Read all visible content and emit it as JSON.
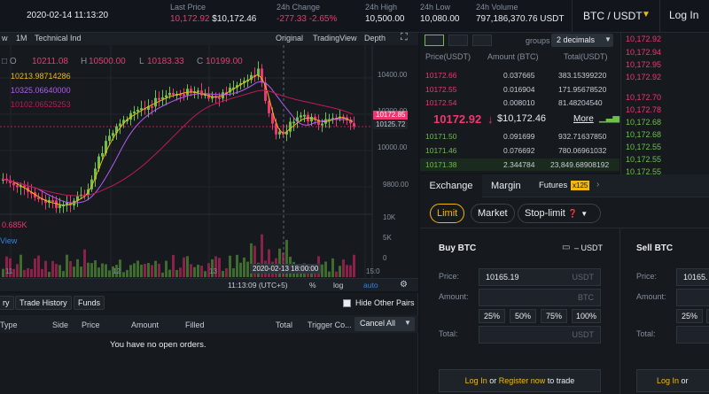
{
  "header": {
    "datetime": "2020-02-14 11:13:20",
    "last_price_label": "Last Price",
    "last_price": "10,172.92",
    "last_price_usd": "$10,172.46",
    "change_label": "24h Change",
    "change_value": "-277.33",
    "change_pct": "-2.65%",
    "high_label": "24h High",
    "high_value": "10,500.00",
    "low_label": "24h Low",
    "low_value": "10,080.00",
    "volume_label": "24h Volume",
    "volume_value": "797,186,370.76 USDT",
    "pair": "BTC / USDT",
    "login": "Log In"
  },
  "chart_toolbar": {
    "intervals": [
      "w",
      "1M"
    ],
    "tech": "Technical Ind",
    "original": "Original",
    "tradingview": "TradingView",
    "depth": "Depth"
  },
  "chart": {
    "ohlc_o": "O",
    "ohlc_o_val": "10211.08",
    "ohlc_h": "H",
    "ohlc_h_val": "10500.00",
    "ohlc_l": "L",
    "ohlc_l_val": "10183.33",
    "ohlc_c": "C",
    "ohlc_c_val": "10199.00",
    "ma1": "10213.98714286",
    "ma2": "10325.06640000",
    "ma3": "10102.06525253",
    "vol": "0.685K",
    "view": "View",
    "price_ticks": [
      "10400.00",
      "10200.00",
      "10000.00",
      "9800.00"
    ],
    "tag_last": "10172.85",
    "tag_ma": "10125.72",
    "vol_ticks": [
      "10K",
      "5K",
      "0"
    ],
    "x_ticks": [
      "11",
      "12",
      "13",
      "15:0"
    ],
    "x_tooltip": "2020-02-13 18:00:00",
    "footer_time": "11:13:09 (UTC+5)",
    "footer_pct": "%",
    "footer_log": "log",
    "footer_auto": "auto"
  },
  "book": {
    "groups_label": "groups",
    "groups_value": "2 decimals",
    "col_price": "Price(USDT)",
    "col_amount": "Amount (BTC)",
    "col_total": "Total(USDT)",
    "asks": [
      {
        "price": "10172.66",
        "amount": "0.037665",
        "total": "383.15399220"
      },
      {
        "price": "10172.55",
        "amount": "0.016904",
        "total": "171.95678520"
      },
      {
        "price": "10172.54",
        "amount": "0.008010",
        "total": "81.48204540"
      }
    ],
    "mid_price": "10172.92",
    "mid_arrow": "↓",
    "mid_usd": "$10,172.46",
    "more": "More",
    "bids": [
      {
        "price": "10171.50",
        "amount": "0.091699",
        "total": "932.71637850"
      },
      {
        "price": "10171.46",
        "amount": "0.076692",
        "total": "780.06961032"
      },
      {
        "price": "10171.38",
        "amount": "2.344784",
        "total": "23,849.68908192"
      }
    ]
  },
  "trades": {
    "rows": [
      {
        "price": "10,172.92",
        "side": "red"
      },
      {
        "price": "10,172.94",
        "side": "red"
      },
      {
        "price": "10,172.95",
        "side": "red"
      },
      {
        "price": "10,172.92",
        "side": "red"
      },
      {
        "price": "10,172.70",
        "side": "red"
      },
      {
        "price": "10,172.78",
        "side": "red"
      },
      {
        "price": "10,172.68",
        "side": "green"
      },
      {
        "price": "10,172.68",
        "side": "green"
      },
      {
        "price": "10,172.55",
        "side": "green"
      },
      {
        "price": "10,172.55",
        "side": "green"
      },
      {
        "price": "10,172.55",
        "side": "green"
      }
    ]
  },
  "orders": {
    "tabs": [
      "ry",
      "Trade History",
      "Funds"
    ],
    "hide_other": "Hide Other Pairs",
    "cols": [
      "Type",
      "Side",
      "Price",
      "Amount",
      "Filled",
      "Total",
      "Trigger Co..."
    ],
    "cancel_all": "Cancel All",
    "empty": "You have no open orders."
  },
  "exchange": {
    "tab_exchange": "Exchange",
    "tab_margin": "Margin",
    "tab_futures": "Futures",
    "futures_badge": "x125",
    "modes": [
      "Limit",
      "Market",
      "Stop-limit"
    ],
    "buy_title": "Buy BTC",
    "buy_balance": "– USDT",
    "sell_title": "Sell BTC",
    "price_label": "Price:",
    "amount_label": "Amount:",
    "total_label": "Total:",
    "buy_price": "10165.19",
    "sell_price": "10165.",
    "unit_usdt": "USDT",
    "unit_btc": "BTC",
    "pcts": [
      "25%",
      "50%",
      "75%",
      "100%"
    ],
    "login_link": "Log In",
    "or": "or",
    "register_link": "Register now",
    "to_trade": "to trade"
  },
  "colors": {
    "up": "#6cbf4a",
    "down": "#f0366f",
    "accent": "#f0b90b"
  }
}
